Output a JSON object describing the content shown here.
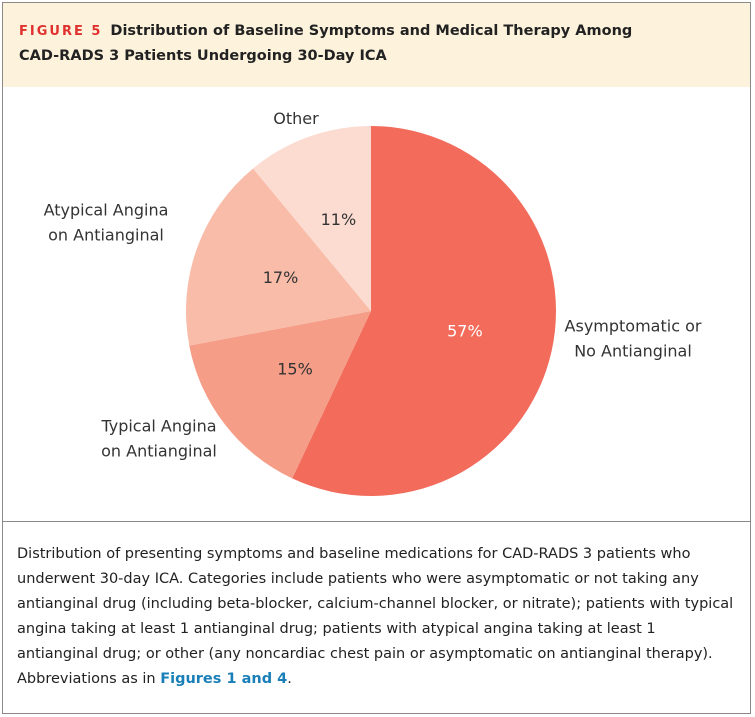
{
  "chart_data": {
    "type": "pie",
    "figure_label": "FIGURE 5",
    "title": "Distribution of Baseline Symptoms and Medical Therapy Among CAD-RADS 3 Patients Undergoing 30-Day ICA",
    "categories": [
      "Asymptomatic or\nNo Antianginal",
      "Typical Angina\non Antianginal",
      "Atypical Angina\non Antianginal",
      "Other"
    ],
    "values": [
      57,
      15,
      17,
      11
    ],
    "value_labels": [
      "57%",
      "15%",
      "17%",
      "11%"
    ],
    "colors": [
      "#f26b5b",
      "#f59d87",
      "#f8bca9",
      "#fcdcd1"
    ]
  },
  "caption": {
    "text": "Distribution of presenting symptoms and baseline medications for CAD-RADS 3 patients who underwent 30-day ICA. Categories include patients who were asymptomatic or not taking any antianginal drug (including beta-blocker, calcium-channel blocker, or nitrate); patients with typical angina taking at least 1 antianginal drug; patients with atypical angina taking at least 1 antianginal drug; or other (any noncardiac chest pain or asymptomatic on antianginal therapy). Abbreviations as in ",
    "link": "Figures 1 and 4",
    "after": "."
  }
}
